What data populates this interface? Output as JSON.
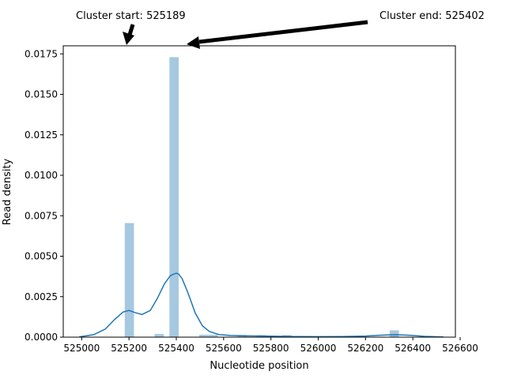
{
  "chart_data": {
    "type": "bar",
    "xlabel": "Nucleotide position",
    "ylabel": "Read density",
    "xlim": [
      524922,
      526580
    ],
    "ylim": [
      0,
      0.018
    ],
    "x_ticks": [
      525000,
      525200,
      525400,
      525600,
      525800,
      526000,
      526200,
      526400,
      526600
    ],
    "y_ticks": [
      0.0,
      0.0025,
      0.005,
      0.0075,
      0.01,
      0.0125,
      0.015,
      0.0175
    ],
    "x_tick_labels": [
      "525000",
      "525200",
      "525400",
      "525600",
      "525800",
      "526000",
      "526200",
      "526400",
      "526600"
    ],
    "y_tick_labels": [
      "0.0000",
      "0.0025",
      "0.0050",
      "0.0075",
      "0.0100",
      "0.0125",
      "0.0150",
      "0.0175"
    ],
    "grid": false,
    "bar_color": "#a6c8e0",
    "line_color": "#1f77b4",
    "histogram": {
      "bins": [
        {
          "start": 525182,
          "end": 525221,
          "density": 0.00705
        },
        {
          "start": 525308,
          "end": 525347,
          "density": 0.0002
        },
        {
          "start": 525371,
          "end": 525410,
          "density": 0.0173
        },
        {
          "start": 525497,
          "end": 525536,
          "density": 0.00015
        },
        {
          "start": 525536,
          "end": 525575,
          "density": 0.00015
        },
        {
          "start": 525659,
          "end": 525698,
          "density": 0.00013
        },
        {
          "start": 525741,
          "end": 525780,
          "density": 0.00013
        },
        {
          "start": 525848,
          "end": 525887,
          "density": 0.00013
        },
        {
          "start": 526302,
          "end": 526341,
          "density": 0.00042
        }
      ]
    },
    "kde": {
      "x": [
        524990,
        525050,
        525100,
        525140,
        525175,
        525200,
        525225,
        525255,
        525290,
        525320,
        525350,
        525375,
        525390,
        525400,
        525410,
        525425,
        525450,
        525480,
        525510,
        525540,
        525580,
        525630,
        525700,
        525800,
        525900,
        526000,
        526100,
        526200,
        526250,
        526300,
        526330,
        526360,
        526400,
        526450,
        526530
      ],
      "y": [
        2e-05,
        0.00015,
        0.0005,
        0.0011,
        0.00155,
        0.00165,
        0.00152,
        0.0014,
        0.00165,
        0.0024,
        0.0033,
        0.0038,
        0.0039,
        0.00395,
        0.0039,
        0.0036,
        0.0027,
        0.0015,
        0.0007,
        0.00035,
        0.00016,
        0.0001,
        8e-05,
        6e-05,
        4e-05,
        3e-05,
        4e-05,
        7e-05,
        0.00011,
        0.00014,
        0.00015,
        0.00013,
        0.0001,
        5e-05,
        1e-05
      ]
    },
    "annotations": [
      {
        "text": "Cluster start: 525189",
        "x": 525189
      },
      {
        "text": "Cluster end: 525402",
        "x": 525402
      }
    ]
  }
}
